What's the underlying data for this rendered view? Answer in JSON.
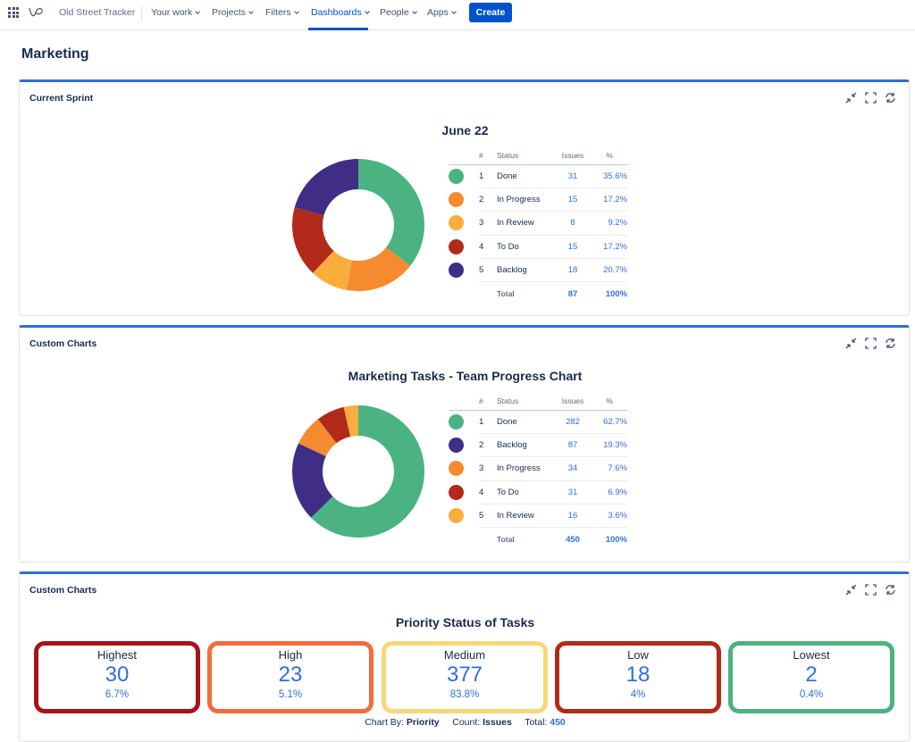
{
  "nav": {
    "app_name": "Old Street Tracker",
    "items": [
      {
        "label": "Your work"
      },
      {
        "label": "Projects"
      },
      {
        "label": "Filters"
      },
      {
        "label": "Dashboards",
        "active": true
      },
      {
        "label": "People"
      },
      {
        "label": "Apps"
      }
    ],
    "create_label": "Create"
  },
  "page_title": "Marketing",
  "colors": {
    "accent": "#2f6fe0",
    "brand_button": "#0052cc",
    "done": "#4bb381",
    "in_progress": "#f68a2e",
    "in_review": "#f9ae3c",
    "to_do": "#b22a1a",
    "backlog": "#3f2d86"
  },
  "panels": [
    {
      "title": "Current Sprint",
      "tools": [
        "collapse-icon",
        "fullscreen-icon",
        "refresh-icon"
      ],
      "chart_title": "June 22",
      "legend_headers": {
        "num": "#",
        "status": "Status",
        "issues": "Issues",
        "pct": "%"
      },
      "rows": [
        {
          "num": "1",
          "status": "Done",
          "issues": "31",
          "pct": "35.6%",
          "color": "#4bb381"
        },
        {
          "num": "2",
          "status": "In Progress",
          "issues": "15",
          "pct": "17.2%",
          "color": "#f68a2e"
        },
        {
          "num": "3",
          "status": "In Review",
          "issues": "8",
          "pct": "9.2%",
          "color": "#f9ae3c"
        },
        {
          "num": "4",
          "status": "To Do",
          "issues": "15",
          "pct": "17.2%",
          "color": "#b22a1a"
        },
        {
          "num": "5",
          "status": "Backlog",
          "issues": "18",
          "pct": "20.7%",
          "color": "#3f2d86"
        }
      ],
      "total": {
        "label": "Total",
        "issues": "87",
        "pct": "100%"
      }
    },
    {
      "title": "Custom Charts",
      "tools": [
        "collapse-icon",
        "fullscreen-icon",
        "refresh-icon"
      ],
      "chart_title": "Marketing Tasks - Team Progress Chart",
      "legend_headers": {
        "num": "#",
        "status": "Status",
        "issues": "Issues",
        "pct": "%"
      },
      "rows": [
        {
          "num": "1",
          "status": "Done",
          "issues": "282",
          "pct": "62.7%",
          "color": "#4bb381"
        },
        {
          "num": "2",
          "status": "Backlog",
          "issues": "87",
          "pct": "19.3%",
          "color": "#3f2d86"
        },
        {
          "num": "3",
          "status": "In Progress",
          "issues": "34",
          "pct": "7.6%",
          "color": "#f68a2e"
        },
        {
          "num": "4",
          "status": "To Do",
          "issues": "31",
          "pct": "6.9%",
          "color": "#b22a1a"
        },
        {
          "num": "5",
          "status": "In Review",
          "issues": "16",
          "pct": "3.6%",
          "color": "#f9ae3c"
        }
      ],
      "total": {
        "label": "Total",
        "issues": "450",
        "pct": "100%"
      }
    },
    {
      "title": "Custom Charts",
      "tools": [
        "collapse-icon",
        "fullscreen-icon",
        "refresh-icon"
      ],
      "chart_title": "Priority Status of Tasks",
      "priorities": [
        {
          "label": "Highest",
          "count": "30",
          "pct": "6.7%",
          "color": "#a8121c"
        },
        {
          "label": "High",
          "count": "23",
          "pct": "5.1%",
          "color": "#f66a3c"
        },
        {
          "label": "Medium",
          "count": "377",
          "pct": "83.8%",
          "color": "#f7d77a"
        },
        {
          "label": "Low",
          "count": "18",
          "pct": "4%",
          "color": "#b22a1a"
        },
        {
          "label": "Lowest",
          "count": "2",
          "pct": "0.4%",
          "color": "#4bb381"
        }
      ],
      "footer": {
        "chart_by_label": "Chart By:",
        "chart_by_value": "Priority",
        "count_label": "Count:",
        "count_value": "Issues",
        "total_label": "Total:",
        "total_value": "450"
      }
    }
  ],
  "chart_data": [
    {
      "type": "pie",
      "title": "June 22",
      "categories": [
        "Done",
        "In Progress",
        "In Review",
        "To Do",
        "Backlog"
      ],
      "values": [
        31,
        15,
        8,
        15,
        18
      ],
      "colors": [
        "#4bb381",
        "#f68a2e",
        "#f9ae3c",
        "#b22a1a",
        "#3f2d86"
      ]
    },
    {
      "type": "pie",
      "title": "Marketing Tasks - Team Progress Chart",
      "categories": [
        "Done",
        "Backlog",
        "In Progress",
        "To Do",
        "In Review"
      ],
      "values": [
        282,
        87,
        34,
        31,
        16
      ],
      "colors": [
        "#4bb381",
        "#3f2d86",
        "#f68a2e",
        "#b22a1a",
        "#f9ae3c"
      ]
    }
  ]
}
